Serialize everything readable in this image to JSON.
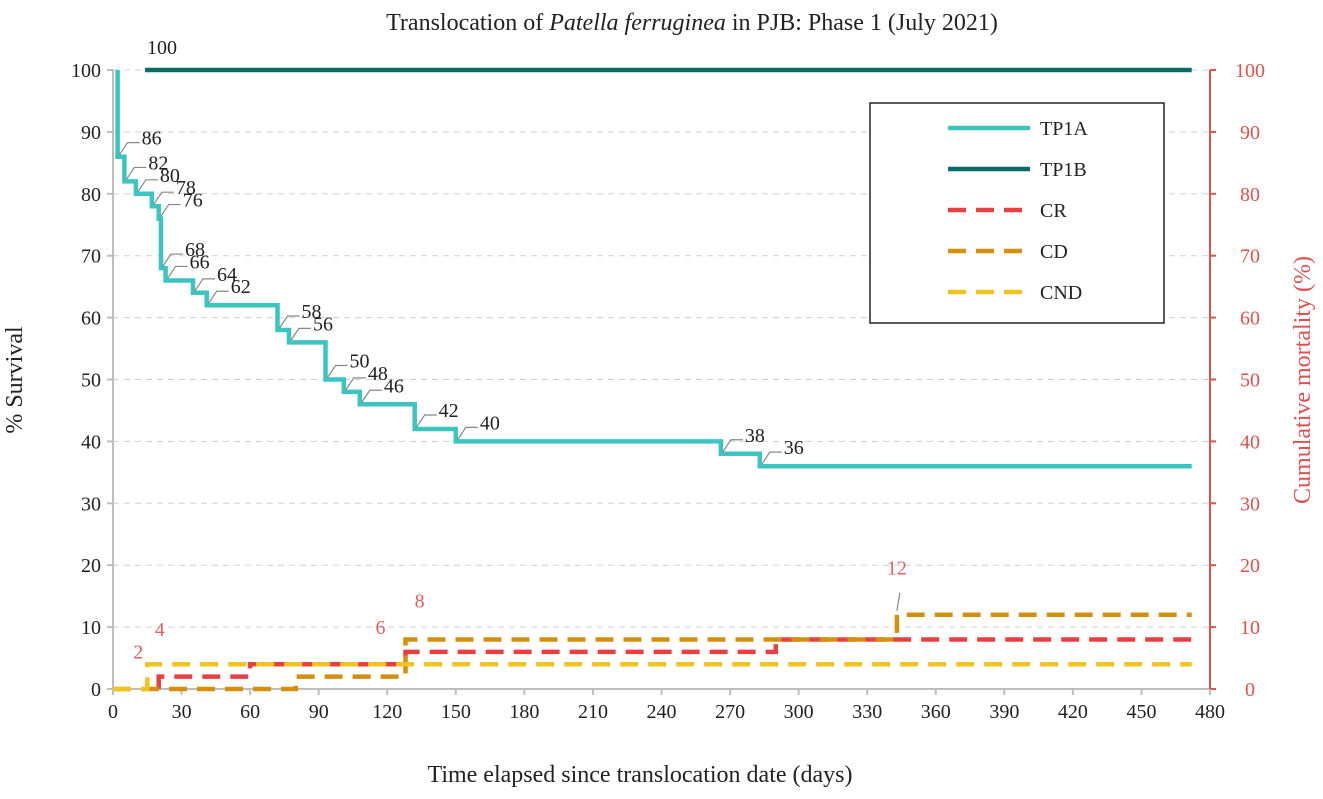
{
  "chart_data": {
    "type": "line",
    "title_prefix": "Translocation of ",
    "title_italic": "Patella ferruginea",
    "title_suffix": " in PJB: Phase 1 (July 2021)",
    "xlabel": "Time elapsed since translocation date (days)",
    "ylabel": "% Survival",
    "y2label": "Cumulative mortality (%)",
    "xlim": [
      0,
      480
    ],
    "ylim": [
      0,
      100
    ],
    "y2lim": [
      0,
      100
    ],
    "xticks": [
      0,
      30,
      60,
      90,
      120,
      150,
      180,
      210,
      240,
      270,
      300,
      330,
      360,
      390,
      420,
      450,
      480
    ],
    "yticks": [
      0,
      10,
      20,
      30,
      40,
      50,
      60,
      70,
      80,
      90,
      100
    ],
    "grid": "horizontal dashed",
    "legend_position": "top-right",
    "colors": {
      "TP1A": "#3cc4c0",
      "TP1B": "#0c6b68",
      "CR": "#e84040",
      "CD": "#d4900c",
      "CND": "#f0c420",
      "right_axis": "#d9534f"
    },
    "series": [
      {
        "name": "TP1A",
        "axis": "left",
        "style": "solid",
        "points": [
          [
            2,
            100
          ],
          [
            2,
            86
          ],
          [
            5,
            86
          ],
          [
            5,
            82
          ],
          [
            10,
            82
          ],
          [
            10,
            80
          ],
          [
            17,
            80
          ],
          [
            17,
            78
          ],
          [
            20,
            78
          ],
          [
            20,
            76
          ],
          [
            21,
            76
          ],
          [
            21,
            68
          ],
          [
            23,
            68
          ],
          [
            23,
            66
          ],
          [
            35,
            66
          ],
          [
            35,
            64
          ],
          [
            41,
            64
          ],
          [
            41,
            62
          ],
          [
            72,
            62
          ],
          [
            72,
            58
          ],
          [
            77,
            58
          ],
          [
            77,
            56
          ],
          [
            93,
            56
          ],
          [
            93,
            50
          ],
          [
            101,
            50
          ],
          [
            101,
            48
          ],
          [
            108,
            48
          ],
          [
            108,
            46
          ],
          [
            132,
            46
          ],
          [
            132,
            42
          ],
          [
            150,
            42
          ],
          [
            150,
            40
          ],
          [
            266,
            40
          ],
          [
            266,
            38
          ],
          [
            283,
            38
          ],
          [
            283,
            36
          ],
          [
            472,
            36
          ]
        ]
      },
      {
        "name": "TP1B",
        "axis": "left",
        "style": "solid",
        "points": [
          [
            14,
            100
          ],
          [
            472,
            100
          ]
        ]
      },
      {
        "name": "CR",
        "axis": "right",
        "style": "dashed",
        "points": [
          [
            20,
            0
          ],
          [
            20,
            2
          ],
          [
            60,
            2
          ],
          [
            60,
            4
          ],
          [
            128,
            4
          ],
          [
            128,
            6
          ],
          [
            290,
            6
          ],
          [
            290,
            8
          ],
          [
            472,
            8
          ]
        ]
      },
      {
        "name": "CD",
        "axis": "right",
        "style": "dashed",
        "points": [
          [
            0,
            0
          ],
          [
            80,
            0
          ],
          [
            80,
            2
          ],
          [
            128,
            2
          ],
          [
            128,
            8
          ],
          [
            343,
            8
          ],
          [
            343,
            12
          ],
          [
            472,
            12
          ]
        ]
      },
      {
        "name": "CND",
        "axis": "right",
        "style": "dashed",
        "points": [
          [
            0,
            0
          ],
          [
            15,
            0
          ],
          [
            15,
            4
          ],
          [
            472,
            4
          ]
        ]
      }
    ],
    "annotations": [
      {
        "label": "100",
        "x": 14,
        "y": 100,
        "color": "dark",
        "leader": false
      },
      {
        "label": "86",
        "x": 2,
        "y": 86,
        "color": "dark",
        "leader": true
      },
      {
        "label": "82",
        "x": 5,
        "y": 82,
        "color": "dark",
        "leader": true
      },
      {
        "label": "80",
        "x": 10,
        "y": 80,
        "color": "dark",
        "leader": true
      },
      {
        "label": "78",
        "x": 17,
        "y": 78,
        "color": "dark",
        "leader": true
      },
      {
        "label": "76",
        "x": 20,
        "y": 76,
        "color": "dark",
        "leader": true
      },
      {
        "label": "68",
        "x": 21,
        "y": 68,
        "color": "dark",
        "leader": true
      },
      {
        "label": "66",
        "x": 23,
        "y": 66,
        "color": "dark",
        "leader": true
      },
      {
        "label": "64",
        "x": 35,
        "y": 64,
        "color": "dark",
        "leader": true
      },
      {
        "label": "62",
        "x": 41,
        "y": 62,
        "color": "dark",
        "leader": true
      },
      {
        "label": "58",
        "x": 72,
        "y": 58,
        "color": "dark",
        "leader": true
      },
      {
        "label": "56",
        "x": 77,
        "y": 56,
        "color": "dark",
        "leader": true
      },
      {
        "label": "50",
        "x": 93,
        "y": 50,
        "color": "dark",
        "leader": true
      },
      {
        "label": "48",
        "x": 101,
        "y": 48,
        "color": "dark",
        "leader": true
      },
      {
        "label": "46",
        "x": 108,
        "y": 46,
        "color": "dark",
        "leader": true
      },
      {
        "label": "42",
        "x": 132,
        "y": 42,
        "color": "dark",
        "leader": true
      },
      {
        "label": "40",
        "x": 150,
        "y": 40,
        "color": "dark",
        "leader": true
      },
      {
        "label": "38",
        "x": 266,
        "y": 38,
        "color": "dark",
        "leader": true
      },
      {
        "label": "36",
        "x": 283,
        "y": 36,
        "color": "dark",
        "leader": true
      },
      {
        "label": "2",
        "x": 15,
        "y": 2,
        "color": "red",
        "leader": false
      },
      {
        "label": "4",
        "x": 20,
        "y": 4,
        "color": "red",
        "leader": false
      },
      {
        "label": "6",
        "x": 128,
        "y": 6,
        "color": "red",
        "leader": false
      },
      {
        "label": "8",
        "x": 132,
        "y": 8,
        "color": "red",
        "leader": false
      },
      {
        "label": "12",
        "x": 343,
        "y": 12,
        "color": "red",
        "leader": true
      }
    ]
  }
}
